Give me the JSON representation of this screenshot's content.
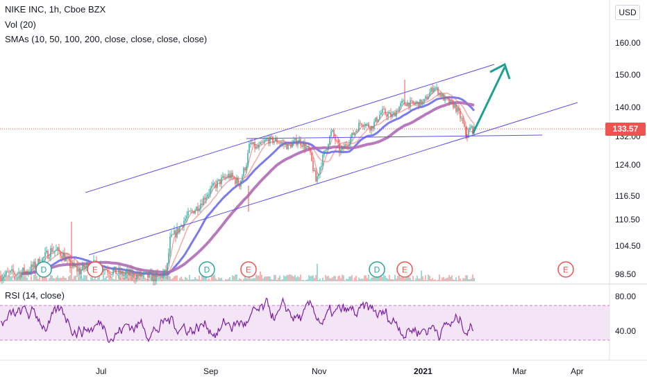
{
  "header": {
    "title": "NIKE INC, 1h, Cboe BZX",
    "vol_label": "Vol (20)",
    "sma_label": "SMAs (10, 50, 100, 200, close, close, close, close)",
    "currency": "USD"
  },
  "last_price": "133.57",
  "colors": {
    "up": "#26a69a",
    "down": "#ef5350",
    "channel": "#5b4ef2",
    "sma10": "#f08a8a",
    "sma50": "#f5a3a3",
    "sma100": "#6b6cf0",
    "sma200": "#b06bb6",
    "rsi": "#7b1fa2",
    "rsi_band": "#f3e5f5",
    "arrow": "#1e9e95"
  },
  "chart_data": [
    {
      "type": "candlestick",
      "title": "NIKE INC, 1h, Cboe BZX",
      "y_ticks": [
        "160.00",
        "150.00",
        "140.00",
        "132.00",
        "124.00",
        "116.50",
        "110.50",
        "104.50",
        "98.50"
      ],
      "x_ticks": [
        "Jul",
        "Sep",
        "Nov",
        "2021",
        "Mar",
        "Apr"
      ],
      "last_price": 133.57,
      "price_path": [
        [
          0,
          98.2
        ],
        [
          40,
          99.2
        ],
        [
          60,
          101.5
        ],
        [
          75,
          103.8
        ],
        [
          90,
          102.8
        ],
        [
          100,
          100.5
        ],
        [
          115,
          99.2
        ],
        [
          130,
          100.8
        ],
        [
          150,
          99.8
        ],
        [
          175,
          98.5
        ],
        [
          200,
          98.3
        ],
        [
          225,
          97.8
        ],
        [
          240,
          98.8
        ],
        [
          245,
          105.8
        ],
        [
          255,
          107.8
        ],
        [
          270,
          111.5
        ],
        [
          285,
          113.8
        ],
        [
          300,
          117.5
        ],
        [
          315,
          119.8
        ],
        [
          330,
          121.5
        ],
        [
          345,
          119.5
        ],
        [
          355,
          124.5
        ],
        [
          360,
          130.2
        ],
        [
          370,
          128.5
        ],
        [
          385,
          131.2
        ],
        [
          400,
          130.6
        ],
        [
          415,
          129.2
        ],
        [
          430,
          131.0
        ],
        [
          445,
          128.0
        ],
        [
          455,
          120.0
        ],
        [
          465,
          126.0
        ],
        [
          478,
          133.5
        ],
        [
          490,
          127.5
        ],
        [
          505,
          131.5
        ],
        [
          520,
          136.0
        ],
        [
          535,
          134.5
        ],
        [
          550,
          138.8
        ],
        [
          565,
          137.5
        ],
        [
          580,
          141.5
        ],
        [
          595,
          141.0
        ],
        [
          610,
          141.5
        ],
        [
          625,
          146.5
        ],
        [
          640,
          142.5
        ],
        [
          655,
          140.5
        ],
        [
          665,
          136.5
        ],
        [
          672,
          131.8
        ],
        [
          678,
          134.5
        ],
        [
          683,
          133.6
        ]
      ],
      "event_markers": [
        {
          "label": "D",
          "x": 63,
          "color": "#26a69a"
        },
        {
          "label": "E",
          "x": 137,
          "color": "#ef5350"
        },
        {
          "label": "D",
          "x": 298,
          "color": "#26a69a"
        },
        {
          "label": "E",
          "x": 358,
          "color": "#ef5350"
        },
        {
          "label": "D",
          "x": 543,
          "color": "#26a69a"
        },
        {
          "label": "E",
          "x": 583,
          "color": "#ef5350"
        },
        {
          "label": "E",
          "x": 815,
          "color": "#ef5350"
        }
      ],
      "indicators": [
        "Vol (20)",
        "SMA 10",
        "SMA 50",
        "SMA 100",
        "SMA 200"
      ]
    },
    {
      "type": "line",
      "title": "RSI (14, close)",
      "y_ticks": [
        "80.00",
        "40.00"
      ],
      "bands": [
        30,
        70
      ]
    }
  ]
}
